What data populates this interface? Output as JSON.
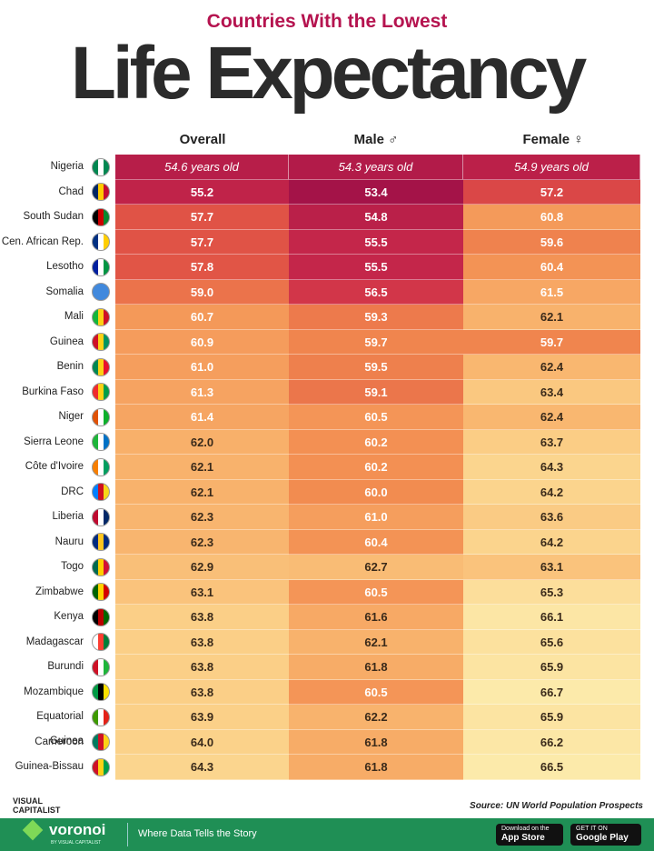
{
  "header": {
    "subtitle": "Countries With the Lowest",
    "title": "Life Expectancy"
  },
  "table": {
    "headers": [
      "Overall",
      "Male ♂",
      "Female ♀"
    ],
    "rows": [
      [
        "Nigeria",
        "54.6 years old",
        "54.3 years old",
        "54.9 years old"
      ],
      [
        "Chad",
        "55.2",
        "53.4",
        "57.2"
      ],
      [
        "South Sudan",
        "57.7",
        "54.8",
        "60.8"
      ],
      [
        "Cen. African Rep.",
        "57.7",
        "55.5",
        "59.6"
      ],
      [
        "Lesotho",
        "57.8",
        "55.5",
        "60.4"
      ],
      [
        "Somalia",
        "59.0",
        "56.5",
        "61.5"
      ],
      [
        "Mali",
        "60.7",
        "59.3",
        "62.1"
      ],
      [
        "Guinea",
        "60.9",
        "59.7",
        "59.7"
      ],
      [
        "Benin",
        "61.0",
        "59.5",
        "62.4"
      ],
      [
        "Burkina Faso",
        "61.3",
        "59.1",
        "63.4"
      ],
      [
        "Niger",
        "61.4",
        "60.5",
        "62.4"
      ],
      [
        "Sierra Leone",
        "62.0",
        "60.2",
        "63.7"
      ],
      [
        "Côte d'Ivoire",
        "62.1",
        "60.2",
        "64.3"
      ],
      [
        "DRC",
        "62.1",
        "60.0",
        "64.2"
      ],
      [
        "Liberia",
        "62.3",
        "61.0",
        "63.6"
      ],
      [
        "Nauru",
        "62.3",
        "60.4",
        "64.2"
      ],
      [
        "Togo",
        "62.9",
        "62.7",
        "63.1"
      ],
      [
        "Zimbabwe",
        "63.1",
        "60.5",
        "65.3"
      ],
      [
        "Kenya",
        "63.8",
        "61.6",
        "66.1"
      ],
      [
        "Madagascar",
        "63.8",
        "62.1",
        "65.6"
      ],
      [
        "Burundi",
        "63.8",
        "61.8",
        "65.9"
      ],
      [
        "Mozambique",
        "63.8",
        "60.5",
        "66.7"
      ],
      [
        "Equatorial Guinea",
        "63.9",
        "62.2",
        "65.9"
      ],
      [
        "Cameroon",
        "64.0",
        "61.8",
        "66.2"
      ],
      [
        "Guinea-Bissau",
        "64.3",
        "61.8",
        "66.5"
      ]
    ]
  },
  "footer": {
    "logo": "VISUAL CAPITALIST",
    "source": "Source: UN World Population Prospects",
    "brand": "voronoi",
    "brand_sub": "BY VISUAL CAPITALIST",
    "tagline": "Where Data Tells the Story",
    "app_store": [
      "Download on the",
      "App Store"
    ],
    "google_play": [
      "GET IT ON",
      "Google Play"
    ]
  }
}
